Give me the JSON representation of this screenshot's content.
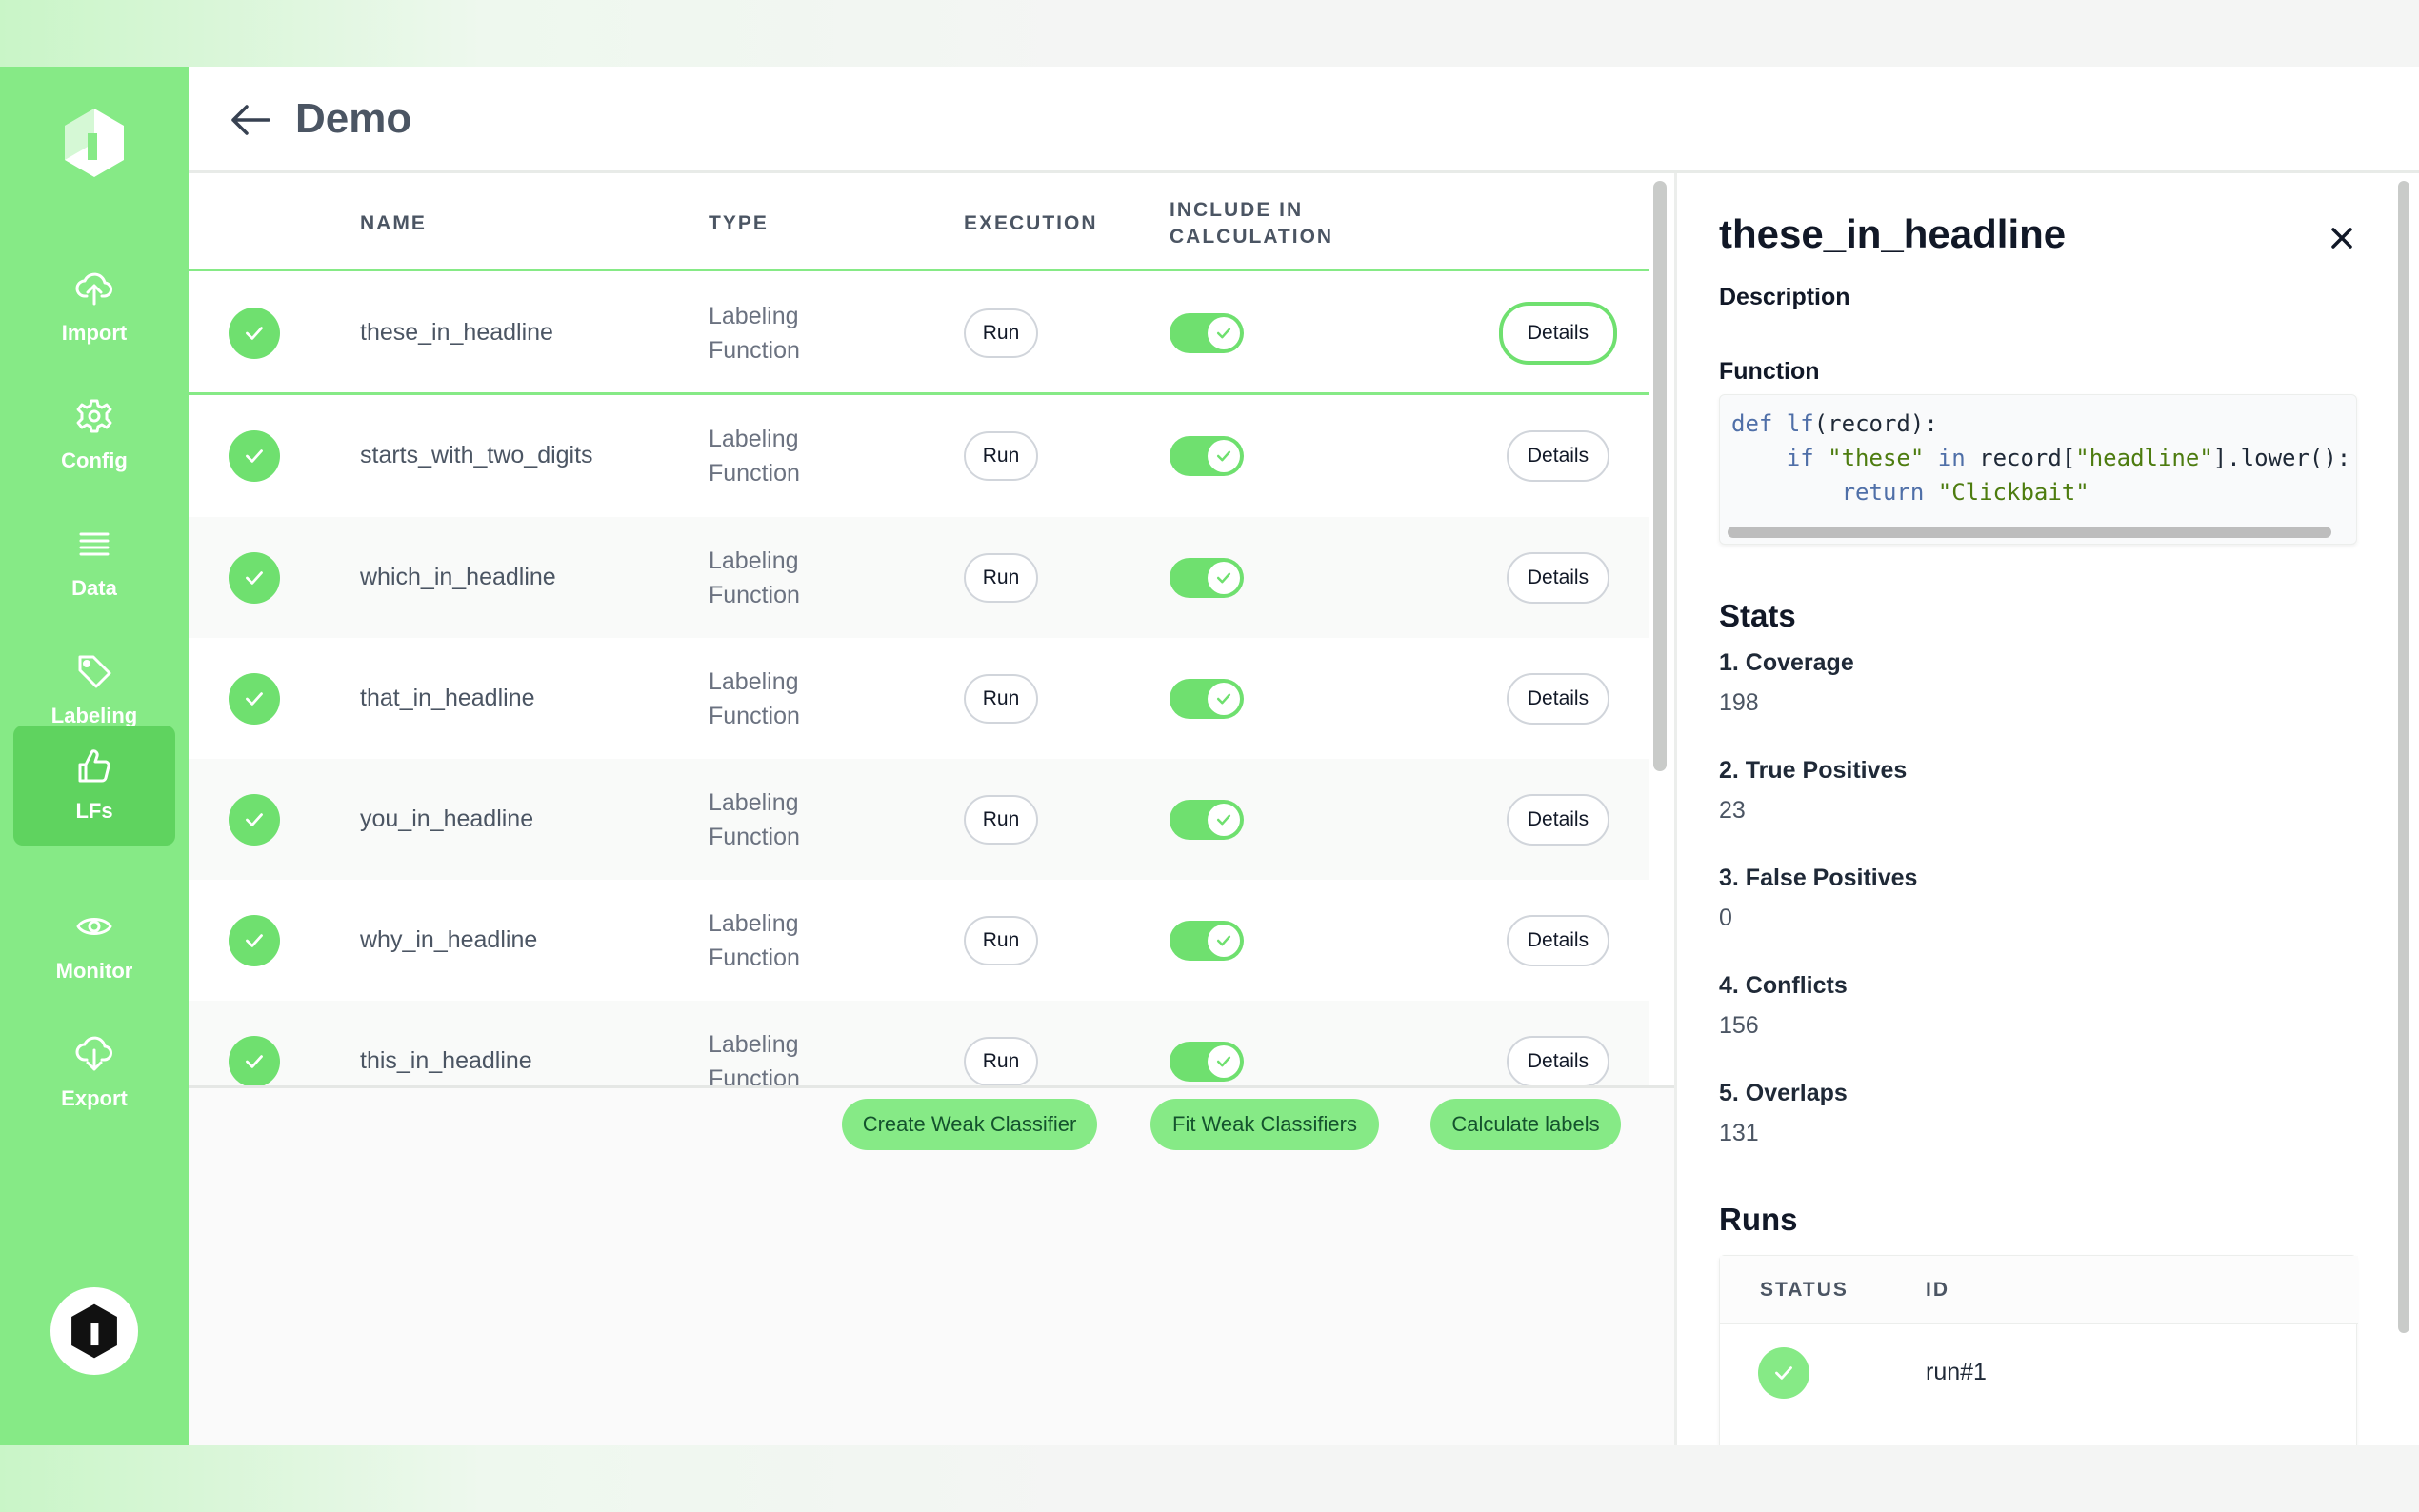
{
  "app": {
    "title": "Demo"
  },
  "colors": {
    "accent": "#86ea86",
    "accent_dark": "#5fd35f",
    "check": "#6fe06f"
  },
  "sidebar": {
    "items": [
      {
        "label": "Import",
        "icon": "upload-cloud-icon"
      },
      {
        "label": "Config",
        "icon": "gear-icon"
      },
      {
        "label": "Data",
        "icon": "list-icon"
      },
      {
        "label": "Labeling",
        "icon": "tag-icon"
      },
      {
        "label": "LFs",
        "icon": "thumbs-up-icon",
        "active": true
      },
      {
        "label": "Monitor",
        "icon": "eye-icon"
      },
      {
        "label": "Export",
        "icon": "download-cloud-icon"
      }
    ]
  },
  "table": {
    "headers": {
      "name": "NAME",
      "type": "TYPE",
      "execution": "EXECUTION",
      "include_line1": "INCLUDE IN",
      "include_line2": "CALCULATION"
    },
    "rows": [
      {
        "name": "these_in_headline",
        "type_line1": "Labeling",
        "type_line2": "Function",
        "run": "Run",
        "details": "Details",
        "status": "success",
        "included": true
      },
      {
        "name": "starts_with_two_digits",
        "type_line1": "Labeling",
        "type_line2": "Function",
        "run": "Run",
        "details": "Details",
        "status": "success",
        "included": true
      },
      {
        "name": "which_in_headline",
        "type_line1": "Labeling",
        "type_line2": "Function",
        "run": "Run",
        "details": "Details",
        "status": "success",
        "included": true
      },
      {
        "name": "that_in_headline",
        "type_line1": "Labeling",
        "type_line2": "Function",
        "run": "Run",
        "details": "Details",
        "status": "success",
        "included": true
      },
      {
        "name": "you_in_headline",
        "type_line1": "Labeling",
        "type_line2": "Function",
        "run": "Run",
        "details": "Details",
        "status": "success",
        "included": true
      },
      {
        "name": "why_in_headline",
        "type_line1": "Labeling",
        "type_line2": "Function",
        "run": "Run",
        "details": "Details",
        "status": "success",
        "included": true
      },
      {
        "name": "this_in_headline",
        "type_line1": "Labeling",
        "type_line2": "Function",
        "run": "Run",
        "details": "Details",
        "status": "success",
        "included": true
      }
    ]
  },
  "actions": {
    "create_weak": "Create Weak Classifier",
    "fit_weak": "Fit Weak Classifiers",
    "calculate": "Calculate labels"
  },
  "panel": {
    "title": "these_in_headline",
    "description_label": "Description",
    "function_label": "Function",
    "stats_title": "Stats",
    "stats": [
      {
        "label": "1. Coverage",
        "value": "198"
      },
      {
        "label": "2. True Positives",
        "value": "23"
      },
      {
        "label": "3. False Positives",
        "value": "0"
      },
      {
        "label": "4. Conflicts",
        "value": "156"
      },
      {
        "label": "5. Overlaps",
        "value": "131"
      }
    ],
    "runs_title": "Runs",
    "runs_headers": {
      "status": "STATUS",
      "id": "ID"
    },
    "runs": [
      {
        "id": "run#1",
        "status": "success"
      }
    ]
  }
}
